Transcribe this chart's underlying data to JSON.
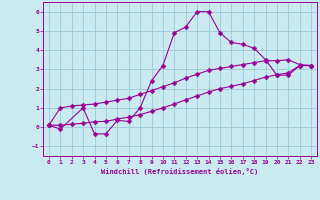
{
  "title": "",
  "xlabel": "Windchill (Refroidissement éolien,°C)",
  "background_color": "#c8eaf0",
  "grid_color": "#a0c8d8",
  "line_color": "#990099",
  "xlim": [
    -0.5,
    23.5
  ],
  "ylim": [
    -1.5,
    6.5
  ],
  "xticks": [
    0,
    1,
    2,
    3,
    4,
    5,
    6,
    7,
    8,
    9,
    10,
    11,
    12,
    13,
    14,
    15,
    16,
    17,
    18,
    19,
    20,
    21,
    22,
    23
  ],
  "yticks": [
    -1,
    0,
    1,
    2,
    3,
    4,
    5,
    6
  ],
  "series1_x": [
    0,
    1,
    3,
    4,
    5,
    6,
    7,
    8,
    9,
    10,
    11,
    12,
    13,
    14,
    15,
    16,
    17,
    18,
    19,
    20,
    21,
    22,
    23
  ],
  "series1_y": [
    0.1,
    -0.1,
    1.0,
    -0.35,
    -0.35,
    0.35,
    0.3,
    1.0,
    2.4,
    3.2,
    4.9,
    5.2,
    6.0,
    6.0,
    4.9,
    4.4,
    4.3,
    4.1,
    3.5,
    2.7,
    2.7,
    3.2,
    3.2
  ],
  "series2_x": [
    0,
    1,
    2,
    3,
    4,
    5,
    6,
    7,
    8,
    9,
    10,
    11,
    12,
    13,
    14,
    15,
    16,
    17,
    18,
    19,
    20,
    21,
    22,
    23
  ],
  "series2_y": [
    0.1,
    1.0,
    1.1,
    1.15,
    1.2,
    1.3,
    1.4,
    1.5,
    1.7,
    1.9,
    2.1,
    2.3,
    2.55,
    2.75,
    2.95,
    3.05,
    3.15,
    3.25,
    3.35,
    3.45,
    3.45,
    3.5,
    3.25,
    3.2
  ],
  "series3_x": [
    0,
    1,
    2,
    3,
    4,
    5,
    6,
    7,
    8,
    9,
    10,
    11,
    12,
    13,
    14,
    15,
    16,
    17,
    18,
    19,
    20,
    21,
    22,
    23
  ],
  "series3_y": [
    0.1,
    0.1,
    0.15,
    0.2,
    0.28,
    0.3,
    0.42,
    0.52,
    0.65,
    0.82,
    1.0,
    1.2,
    1.42,
    1.62,
    1.82,
    2.0,
    2.12,
    2.25,
    2.42,
    2.6,
    2.72,
    2.82,
    3.2,
    3.2
  ]
}
